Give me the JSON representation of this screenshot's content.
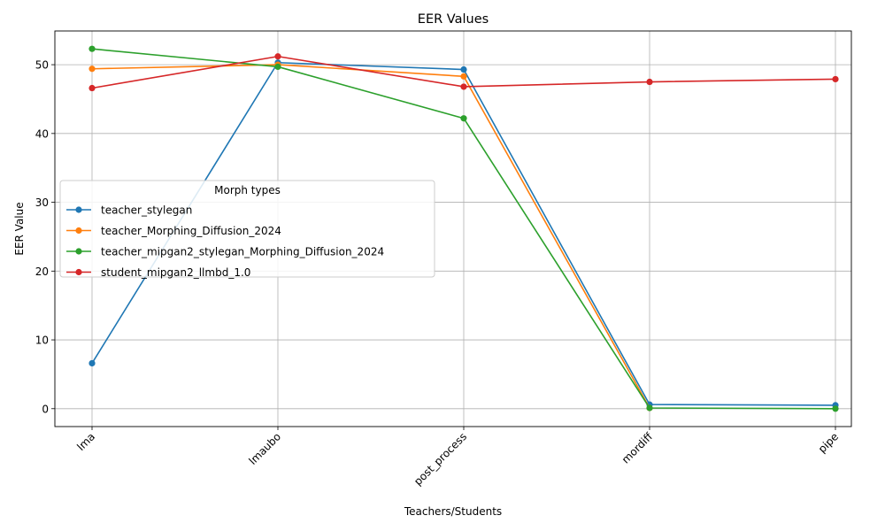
{
  "chart_data": {
    "type": "line",
    "title": "EER Values",
    "xlabel": "Teachers/Students",
    "ylabel": "EER Value",
    "categories": [
      "lma",
      "lmaubo",
      "post_process",
      "mordiff",
      "pipe"
    ],
    "ylim": [
      -2.6,
      54.9
    ],
    "yticks": [
      0,
      10,
      20,
      30,
      40,
      50
    ],
    "grid": true,
    "legend": {
      "title": "Morph types",
      "placement": "center-left"
    },
    "series": [
      {
        "name": "teacher_stylegan",
        "color": "#1f77b4",
        "values": [
          6.6,
          50.3,
          49.3,
          0.6,
          0.5
        ]
      },
      {
        "name": "teacher_Morphing_Diffusion_2024",
        "color": "#ff7f0e",
        "values": [
          49.4,
          50.0,
          48.3,
          0.1,
          null
        ]
      },
      {
        "name": "teacher_mipgan2_stylegan_Morphing_Diffusion_2024",
        "color": "#2ca02c",
        "values": [
          52.3,
          49.7,
          42.2,
          0.1,
          0.0
        ]
      },
      {
        "name": "student_mipgan2_llmbd_1.0",
        "color": "#d62728",
        "values": [
          46.6,
          51.2,
          46.8,
          47.5,
          47.9
        ]
      }
    ]
  }
}
